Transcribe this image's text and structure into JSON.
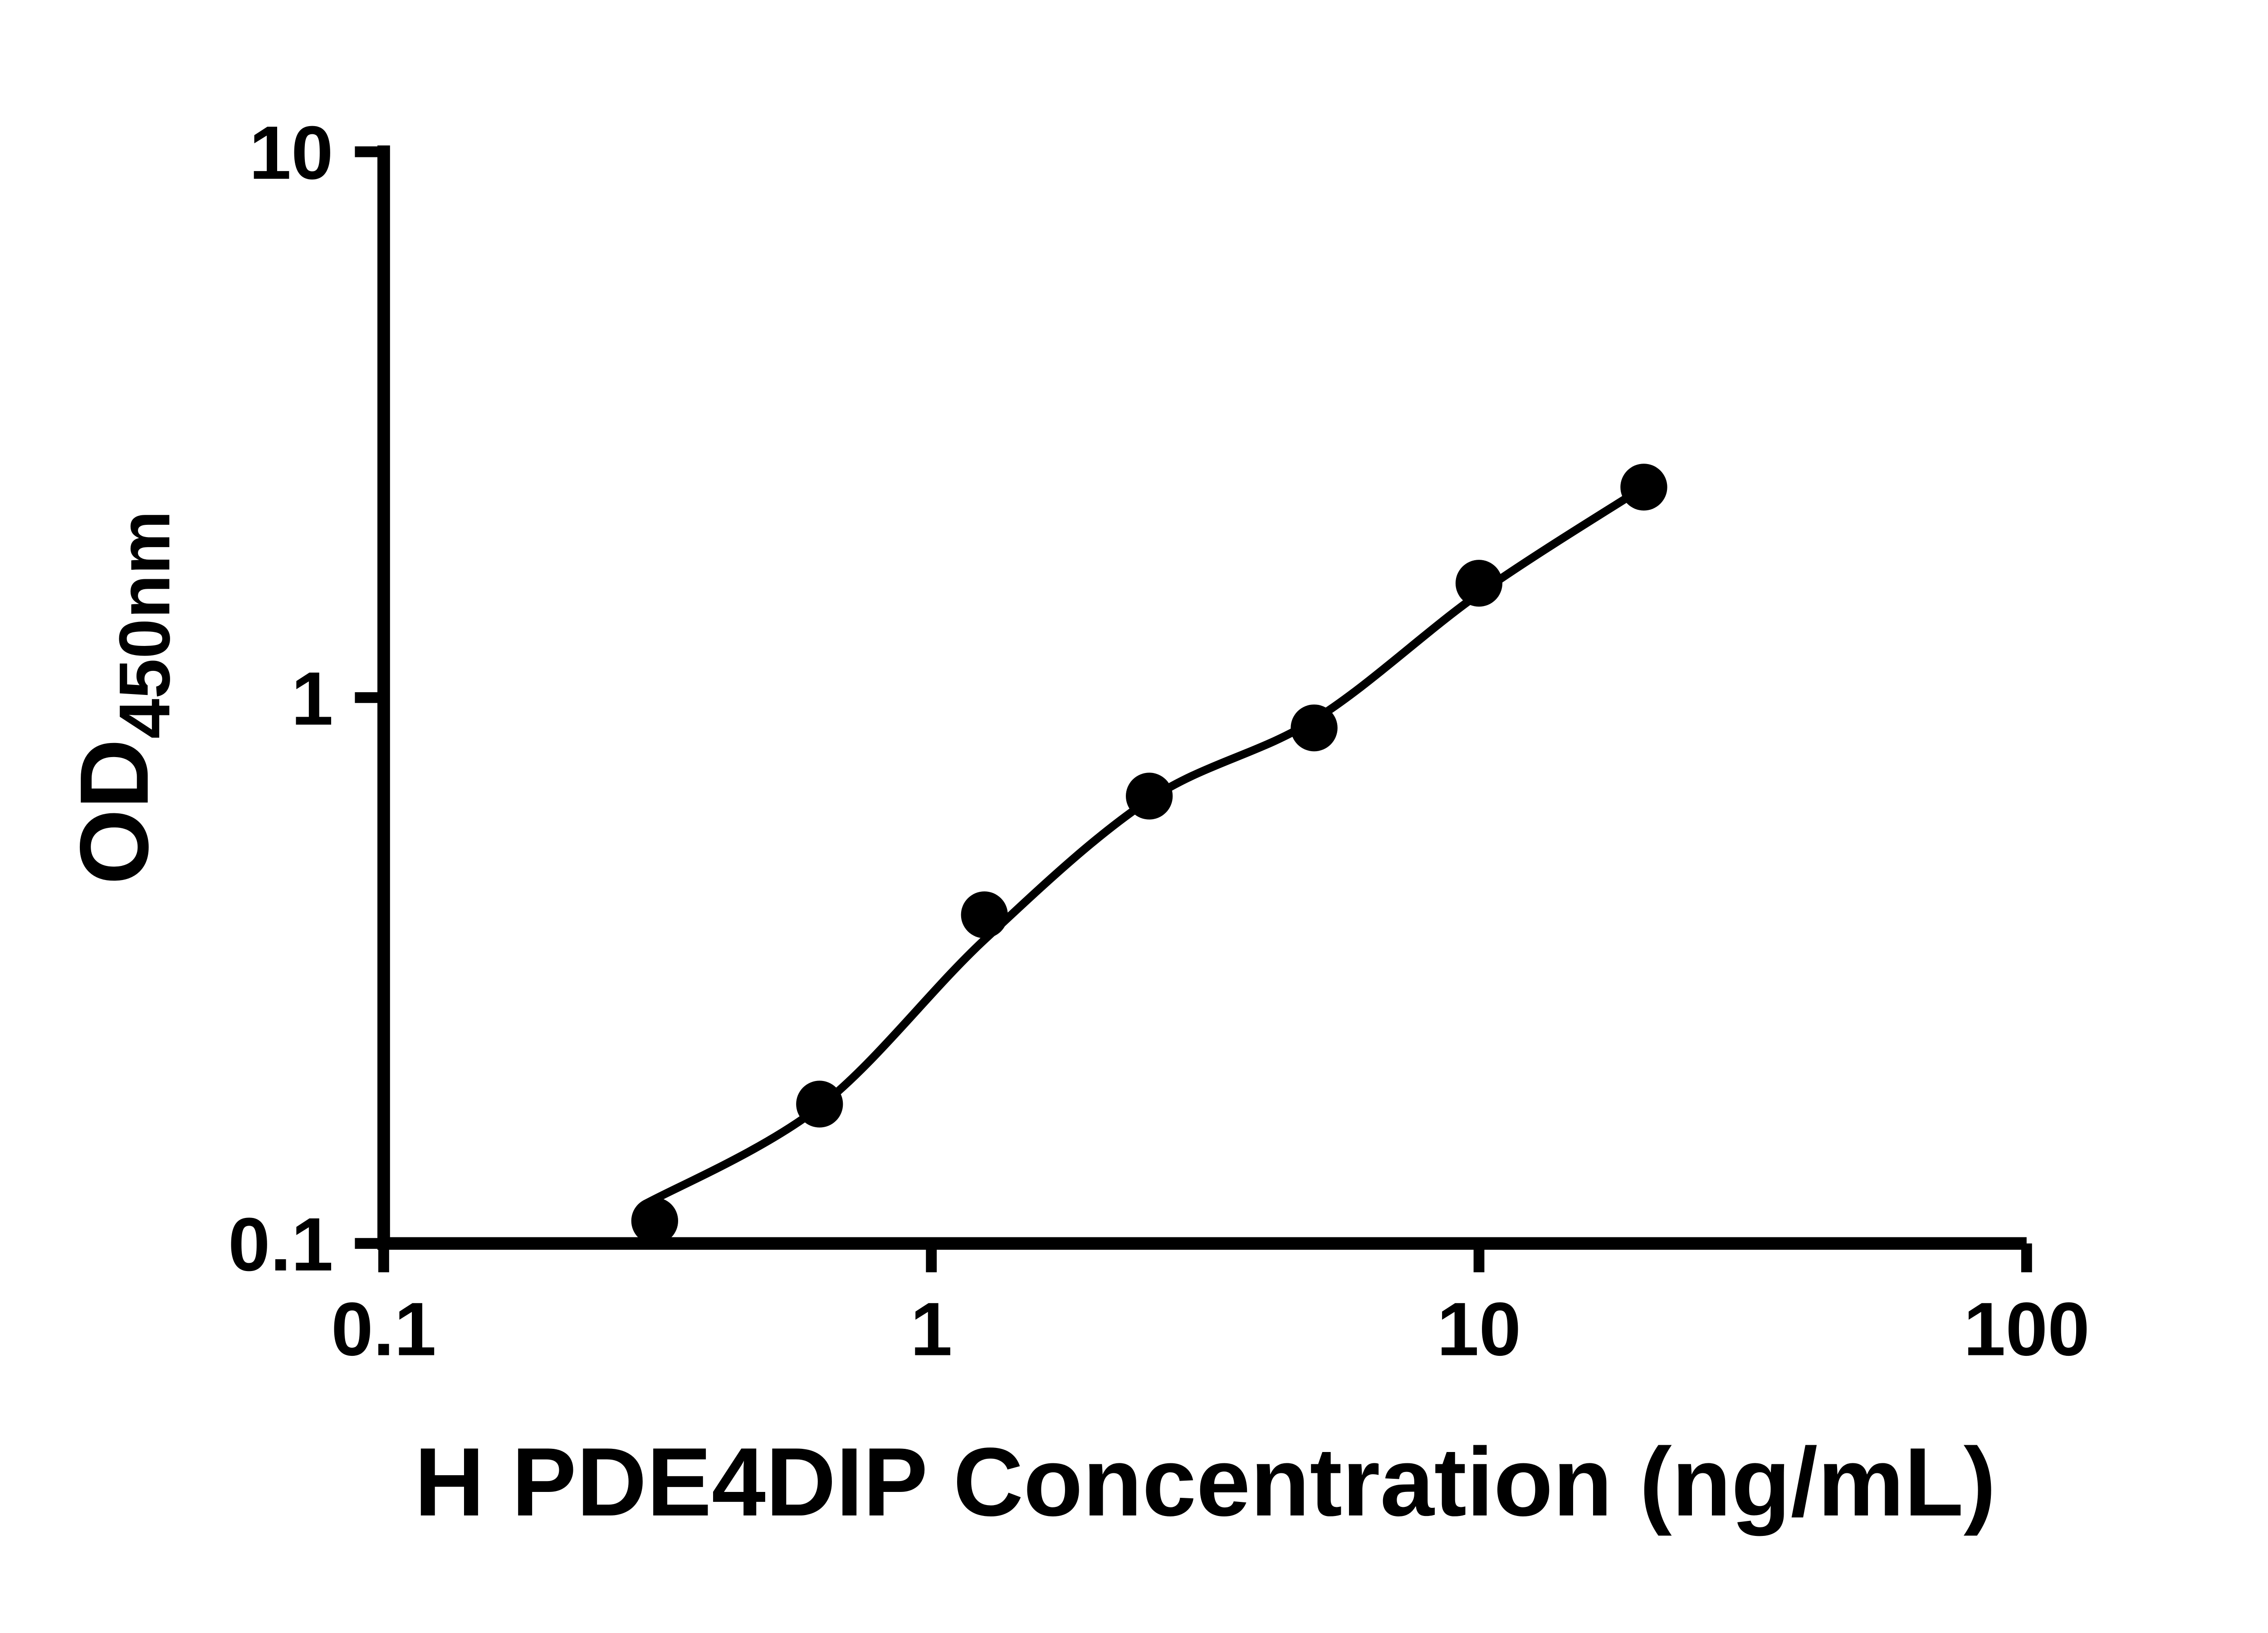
{
  "page": {
    "background": "#ffffff"
  },
  "chart_data": {
    "type": "scatter",
    "title": "",
    "xlabel": "H PDE4DIP Concentration (ng/mL)",
    "ylabel": "OD",
    "ylabel_subscript": "450nm",
    "x_scale": "log",
    "y_scale": "log",
    "xlim": [
      0.1,
      100
    ],
    "ylim": [
      0.1,
      10
    ],
    "x_ticks": [
      0.1,
      1,
      10,
      100
    ],
    "x_tick_labels": [
      "0.1",
      "1",
      "10",
      "100"
    ],
    "y_ticks": [
      0.1,
      1,
      10
    ],
    "y_tick_labels": [
      "0.1",
      "1",
      "10"
    ],
    "grid": false,
    "legend": false,
    "axis_color": "#000000",
    "series": [
      {
        "name": "fit-curve",
        "type": "line",
        "color": "#000000",
        "points": [
          {
            "x": 0.3,
            "y": 0.118
          },
          {
            "x": 0.625,
            "y": 0.178
          },
          {
            "x": 1.25,
            "y": 0.36
          },
          {
            "x": 2.5,
            "y": 0.65
          },
          {
            "x": 5,
            "y": 0.91
          },
          {
            "x": 10,
            "y": 1.55
          },
          {
            "x": 20,
            "y": 2.43
          }
        ]
      },
      {
        "name": "standard-points",
        "type": "scatter",
        "marker": "circle",
        "color": "#000000",
        "points": [
          {
            "x": 0.3125,
            "y": 0.11
          },
          {
            "x": 0.625,
            "y": 0.18
          },
          {
            "x": 1.25,
            "y": 0.4
          },
          {
            "x": 2.5,
            "y": 0.66
          },
          {
            "x": 5,
            "y": 0.88
          },
          {
            "x": 10,
            "y": 1.62
          },
          {
            "x": 20,
            "y": 2.43
          }
        ]
      }
    ]
  }
}
